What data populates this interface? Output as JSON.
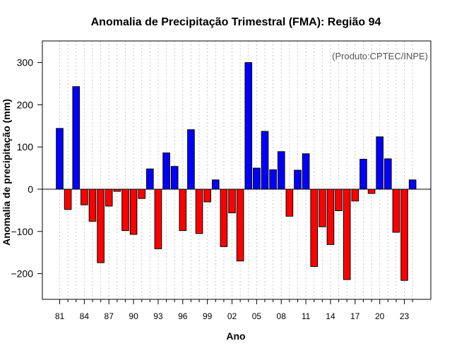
{
  "colors": {
    "positive": "#0000ff",
    "negative": "#ff0000",
    "grid": "#c8c8c8",
    "credit": "#555555"
  },
  "credit": "(Produto:CPTEC/INPE)",
  "chart_data": {
    "type": "bar",
    "title": "Anomalia de Precipitação Trimestral (FMA): Região 94",
    "xlabel": "Ano",
    "ylabel": "Anomalia de precipitação (mm)",
    "ylim": [
      -265,
      350
    ],
    "yticks": [
      -200,
      -100,
      0,
      100,
      200,
      300
    ],
    "ytick_labels": [
      "−200",
      "−100",
      "0",
      "100",
      "200",
      "300"
    ],
    "xtick_labels": [
      "81",
      "84",
      "87",
      "90",
      "93",
      "96",
      "99",
      "02",
      "05",
      "08",
      "11",
      "14",
      "17",
      "20",
      "23"
    ],
    "xtick_every": 3,
    "grid": true,
    "categories": [
      "1981",
      "1982",
      "1983",
      "1984",
      "1985",
      "1986",
      "1987",
      "1988",
      "1989",
      "1990",
      "1991",
      "1992",
      "1993",
      "1994",
      "1995",
      "1996",
      "1997",
      "1998",
      "1999",
      "2000",
      "2001",
      "2002",
      "2003",
      "2004",
      "2005",
      "2006",
      "2007",
      "2008",
      "2009",
      "2010",
      "2011",
      "2012",
      "2013",
      "2014",
      "2015",
      "2016",
      "2017",
      "2018",
      "2019",
      "2020",
      "2021",
      "2022",
      "2023",
      "2024"
    ],
    "values": [
      144,
      -48,
      243,
      -37,
      -76,
      -174,
      -40,
      -5,
      -98,
      -107,
      -22,
      48,
      -141,
      86,
      54,
      -98,
      141,
      -105,
      -30,
      22,
      -136,
      -56,
      -170,
      300,
      50,
      137,
      46,
      89,
      -64,
      45,
      84,
      -183,
      -89,
      -131,
      -51,
      -214,
      -28,
      71,
      -10,
      124,
      72,
      -102,
      -216,
      22
    ]
  }
}
